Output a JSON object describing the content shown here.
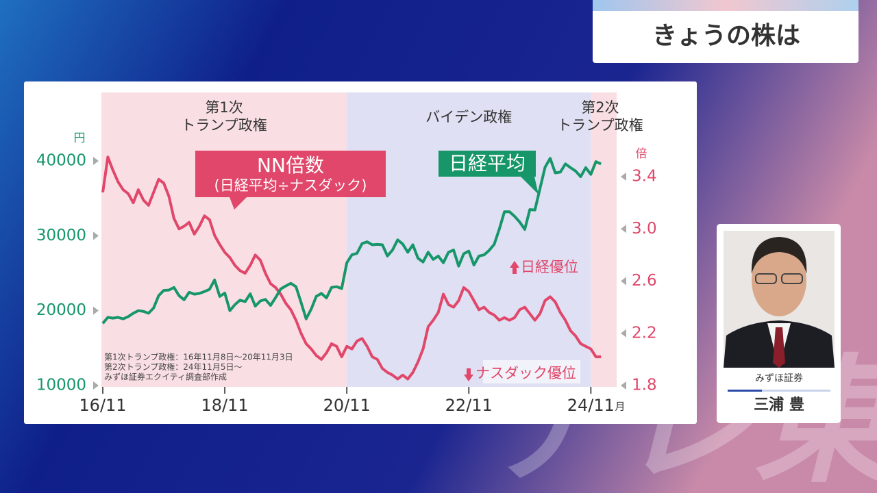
{
  "header": {
    "title": "きょうの株は"
  },
  "speaker": {
    "company": "みずほ証券",
    "name": "三浦 豊"
  },
  "watermark": "テレ東",
  "chart_data": {
    "type": "line",
    "x": [
      "16/11",
      "16/12",
      "17/01",
      "17/02",
      "17/03",
      "17/04",
      "17/05",
      "17/06",
      "17/07",
      "17/08",
      "17/09",
      "17/10",
      "17/11",
      "17/12",
      "18/01",
      "18/02",
      "18/03",
      "18/04",
      "18/05",
      "18/06",
      "18/07",
      "18/08",
      "18/09",
      "18/10",
      "18/11",
      "18/12",
      "19/01",
      "19/02",
      "19/03",
      "19/04",
      "19/05",
      "19/06",
      "19/07",
      "19/08",
      "19/09",
      "19/10",
      "19/11",
      "19/12",
      "20/01",
      "20/02",
      "20/03",
      "20/04",
      "20/05",
      "20/06",
      "20/07",
      "20/08",
      "20/09",
      "20/10",
      "20/11",
      "20/12",
      "21/01",
      "21/02",
      "21/03",
      "21/04",
      "21/05",
      "21/06",
      "21/07",
      "21/08",
      "21/09",
      "21/10",
      "21/11",
      "21/12",
      "22/01",
      "22/02",
      "22/03",
      "22/04",
      "22/05",
      "22/06",
      "22/07",
      "22/08",
      "22/09",
      "22/10",
      "22/11",
      "22/12",
      "23/01",
      "23/02",
      "23/03",
      "23/04",
      "23/05",
      "23/06",
      "23/07",
      "23/08",
      "23/09",
      "23/10",
      "23/11",
      "23/12",
      "24/01",
      "24/02",
      "24/03",
      "24/04",
      "24/05",
      "24/06",
      "24/07",
      "24/08",
      "24/09",
      "24/10",
      "24/11",
      "24/12",
      "25/01"
    ],
    "series": [
      {
        "name": "NN倍数",
        "note": "(日経平均÷ナスダック)",
        "color": "#e0476a",
        "axis": "y2",
        "values": [
          3.28,
          3.55,
          3.45,
          3.36,
          3.3,
          3.27,
          3.2,
          3.3,
          3.22,
          3.18,
          3.28,
          3.38,
          3.35,
          3.25,
          3.08,
          3.0,
          3.02,
          3.05,
          2.96,
          3.02,
          3.1,
          3.07,
          2.95,
          2.88,
          2.82,
          2.78,
          2.72,
          2.68,
          2.66,
          2.72,
          2.8,
          2.76,
          2.66,
          2.58,
          2.55,
          2.5,
          2.43,
          2.38,
          2.3,
          2.2,
          2.12,
          2.08,
          2.03,
          2.0,
          2.05,
          2.12,
          2.1,
          2.02,
          2.1,
          2.08,
          2.14,
          2.16,
          2.1,
          2.02,
          2.0,
          1.93,
          1.9,
          1.88,
          1.85,
          1.88,
          1.85,
          1.9,
          1.98,
          2.08,
          2.25,
          2.3,
          2.36,
          2.5,
          2.42,
          2.4,
          2.45,
          2.55,
          2.52,
          2.45,
          2.38,
          2.4,
          2.36,
          2.34,
          2.3,
          2.32,
          2.3,
          2.32,
          2.38,
          2.4,
          2.35,
          2.3,
          2.35,
          2.45,
          2.48,
          2.44,
          2.36,
          2.3,
          2.22,
          2.18,
          2.12,
          2.1,
          2.08,
          2.02,
          2.02
        ]
      },
      {
        "name": "日経平均",
        "color": "#17966a",
        "axis": "y",
        "values": [
          18300,
          19100,
          19000,
          19100,
          18900,
          19200,
          19650,
          20000,
          19900,
          19650,
          20350,
          22000,
          22700,
          22750,
          23100,
          22000,
          21450,
          22450,
          22200,
          22300,
          22550,
          22850,
          24100,
          21900,
          22350,
          20000,
          20800,
          21400,
          21200,
          22250,
          20600,
          21300,
          21500,
          20700,
          21750,
          22900,
          23300,
          23650,
          23200,
          21100,
          18900,
          20200,
          21900,
          22300,
          21700,
          23100,
          23200,
          22950,
          26400,
          27450,
          27650,
          28950,
          29200,
          28800,
          28850,
          28800,
          27300,
          28100,
          29450,
          28900,
          27800,
          28800,
          27000,
          26500,
          27800,
          26850,
          27300,
          26400,
          27800,
          28100,
          25950,
          27600,
          27950,
          26100,
          27300,
          27450,
          28050,
          28850,
          30900,
          33200,
          33200,
          32600,
          31850,
          30850,
          33500,
          33450,
          36300,
          39150,
          40350,
          38400,
          38500,
          39600,
          39100,
          38650,
          37900,
          39100,
          38200,
          39900,
          39600
        ]
      }
    ],
    "xticks": [
      "16/11",
      "18/11",
      "20/11",
      "22/11",
      "24/11"
    ],
    "xlabel": "月",
    "ylabel": "円",
    "y2label": "倍",
    "ylim": [
      10000,
      40000
    ],
    "yticks": [
      10000,
      20000,
      30000,
      40000
    ],
    "y2lim": [
      1.8,
      3.4
    ],
    "y2ticks": [
      1.8,
      2.2,
      2.6,
      {
        "value": 3,
        "label": "3.0"
      },
      3.4
    ],
    "periods": [
      {
        "label": [
          "第1次",
          "トランプ政権"
        ],
        "start": "16/11",
        "end": "20/11",
        "color": "#f9dfe4"
      },
      {
        "label": [
          "バイデン政権"
        ],
        "start": "20/11",
        "end": "24/11",
        "color": "#dfe0f3"
      },
      {
        "label": [
          "第2次",
          "トランプ政権"
        ],
        "start": "24/11",
        "end": "25/01",
        "color": "#f9dfe4"
      }
    ],
    "annotations": [
      "日経優位",
      "ナスダック優位"
    ],
    "notes": [
      "第1次トランプ政権：16年11月8日～20年11月3日",
      "第2次トランプ政権：24年11月5日～",
      "みずほ証券エクイティ調査部作成"
    ]
  }
}
